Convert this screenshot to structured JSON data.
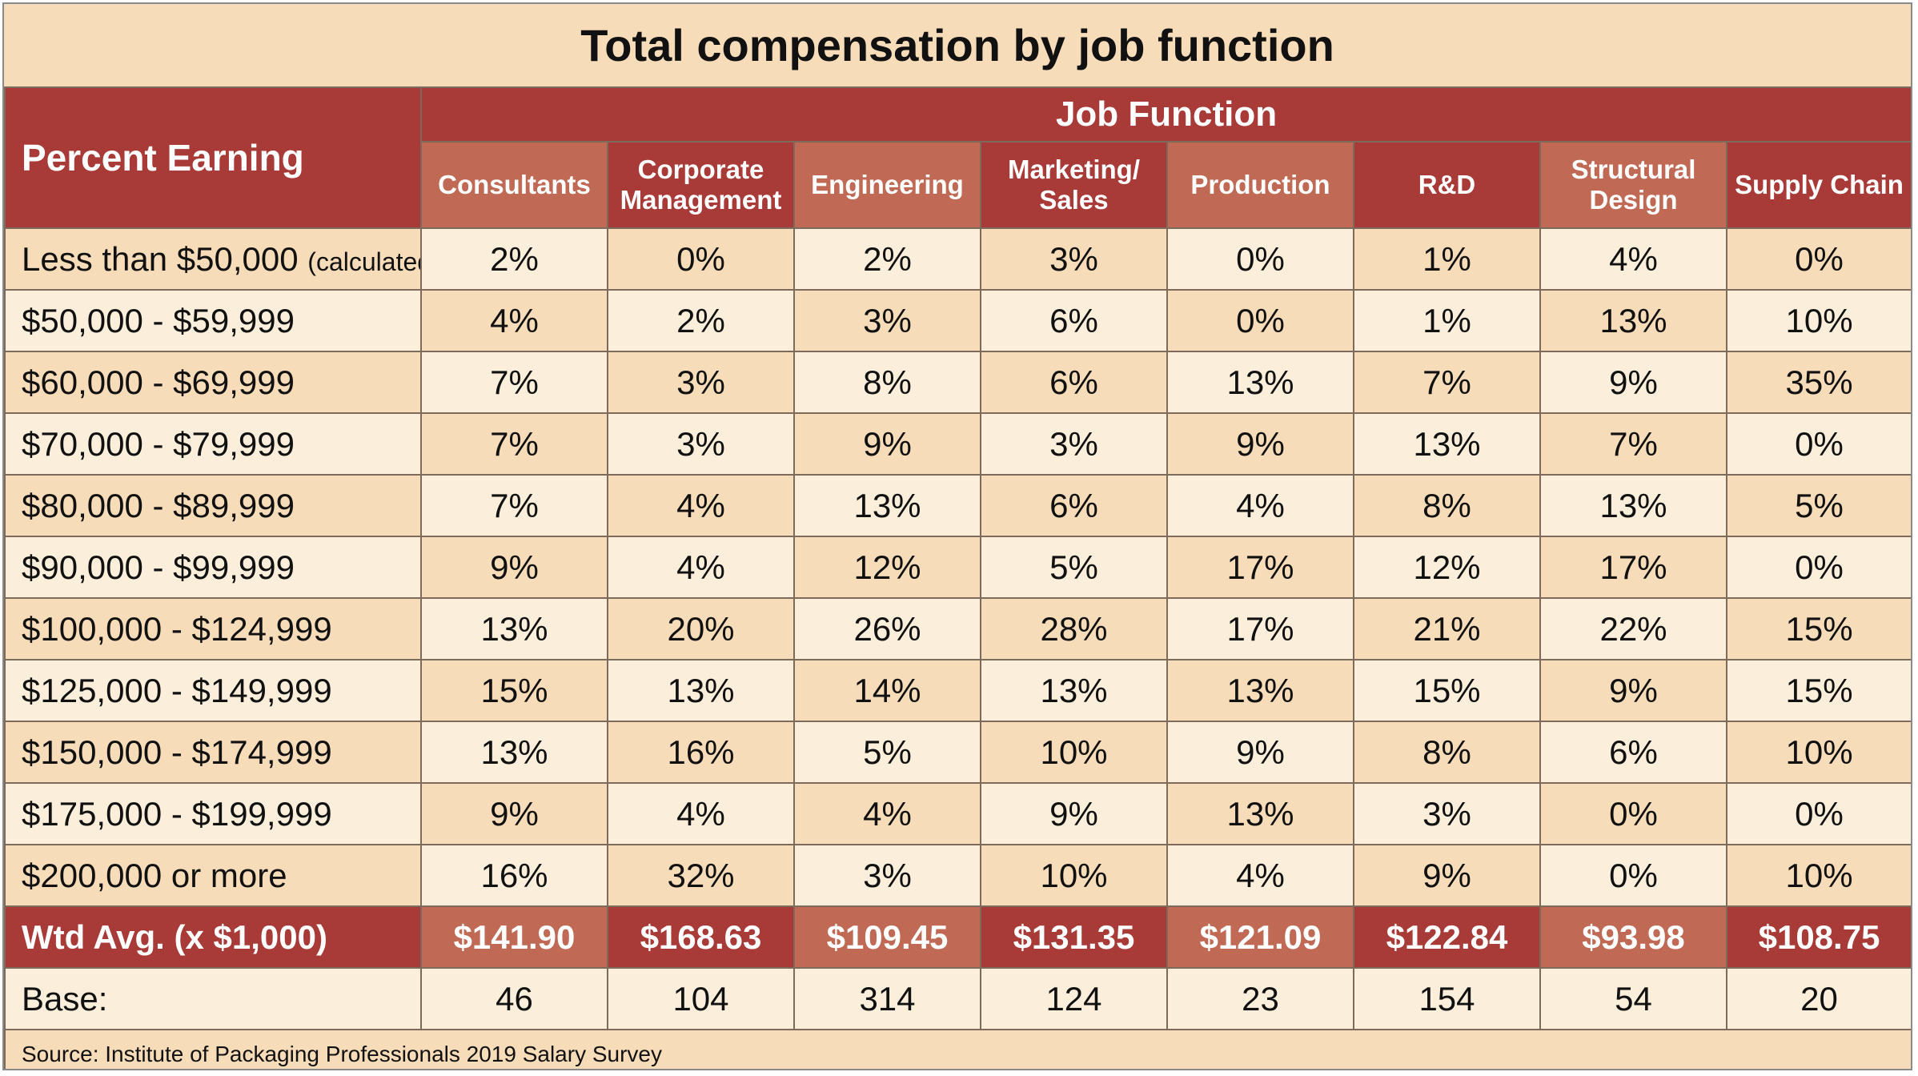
{
  "chart_data": {
    "type": "table",
    "title": "Total compensation by job function",
    "row_header_label": "Percent Earning",
    "column_group_label": "Job Function",
    "columns": [
      "Consultants",
      "Corporate Management",
      "Engineering",
      "Marketing/ Sales",
      "Production",
      "R&D",
      "Structural Design",
      "Supply Chain"
    ],
    "rows": [
      {
        "label": "Less than $50,000",
        "note": "(calculated)",
        "values": [
          "2%",
          "0%",
          "2%",
          "3%",
          "0%",
          "1%",
          "4%",
          "0%"
        ]
      },
      {
        "label": "$50,000 - $59,999",
        "values": [
          "4%",
          "2%",
          "3%",
          "6%",
          "0%",
          "1%",
          "13%",
          "10%"
        ]
      },
      {
        "label": "$60,000 - $69,999",
        "values": [
          "7%",
          "3%",
          "8%",
          "6%",
          "13%",
          "7%",
          "9%",
          "35%"
        ]
      },
      {
        "label": "$70,000 - $79,999",
        "values": [
          "7%",
          "3%",
          "9%",
          "3%",
          "9%",
          "13%",
          "7%",
          "0%"
        ]
      },
      {
        "label": "$80,000 - $89,999",
        "values": [
          "7%",
          "4%",
          "13%",
          "6%",
          "4%",
          "8%",
          "13%",
          "5%"
        ]
      },
      {
        "label": "$90,000 - $99,999",
        "values": [
          "9%",
          "4%",
          "12%",
          "5%",
          "17%",
          "12%",
          "17%",
          "0%"
        ]
      },
      {
        "label": "$100,000 - $124,999",
        "values": [
          "13%",
          "20%",
          "26%",
          "28%",
          "17%",
          "21%",
          "22%",
          "15%"
        ]
      },
      {
        "label": "$125,000 - $149,999",
        "values": [
          "15%",
          "13%",
          "14%",
          "13%",
          "13%",
          "15%",
          "9%",
          "15%"
        ]
      },
      {
        "label": "$150,000 - $174,999",
        "values": [
          "13%",
          "16%",
          "5%",
          "10%",
          "9%",
          "8%",
          "6%",
          "10%"
        ]
      },
      {
        "label": "$175,000 - $199,999",
        "values": [
          "9%",
          "4%",
          "4%",
          "9%",
          "13%",
          "3%",
          "0%",
          "0%"
        ]
      },
      {
        "label": "$200,000 or more",
        "values": [
          "16%",
          "32%",
          "3%",
          "10%",
          "4%",
          "9%",
          "0%",
          "10%"
        ]
      }
    ],
    "wtd_avg": {
      "label": "Wtd Avg. (x $1,000)",
      "values": [
        "$141.90",
        "$168.63",
        "$109.45",
        "$131.35",
        "$121.09",
        "$122.84",
        "$93.98",
        "$108.75"
      ]
    },
    "base": {
      "label": "Base:",
      "values": [
        "46",
        "104",
        "314",
        "124",
        "23",
        "154",
        "54",
        "20"
      ]
    },
    "source": "Source: Institute of Packaging Professionals 2019 Salary Survey"
  },
  "colors": {
    "header_dark": "#a83a37",
    "header_light": "#c06a55",
    "row_light": "#fbefdc",
    "row_tan": "#f7dcba"
  }
}
